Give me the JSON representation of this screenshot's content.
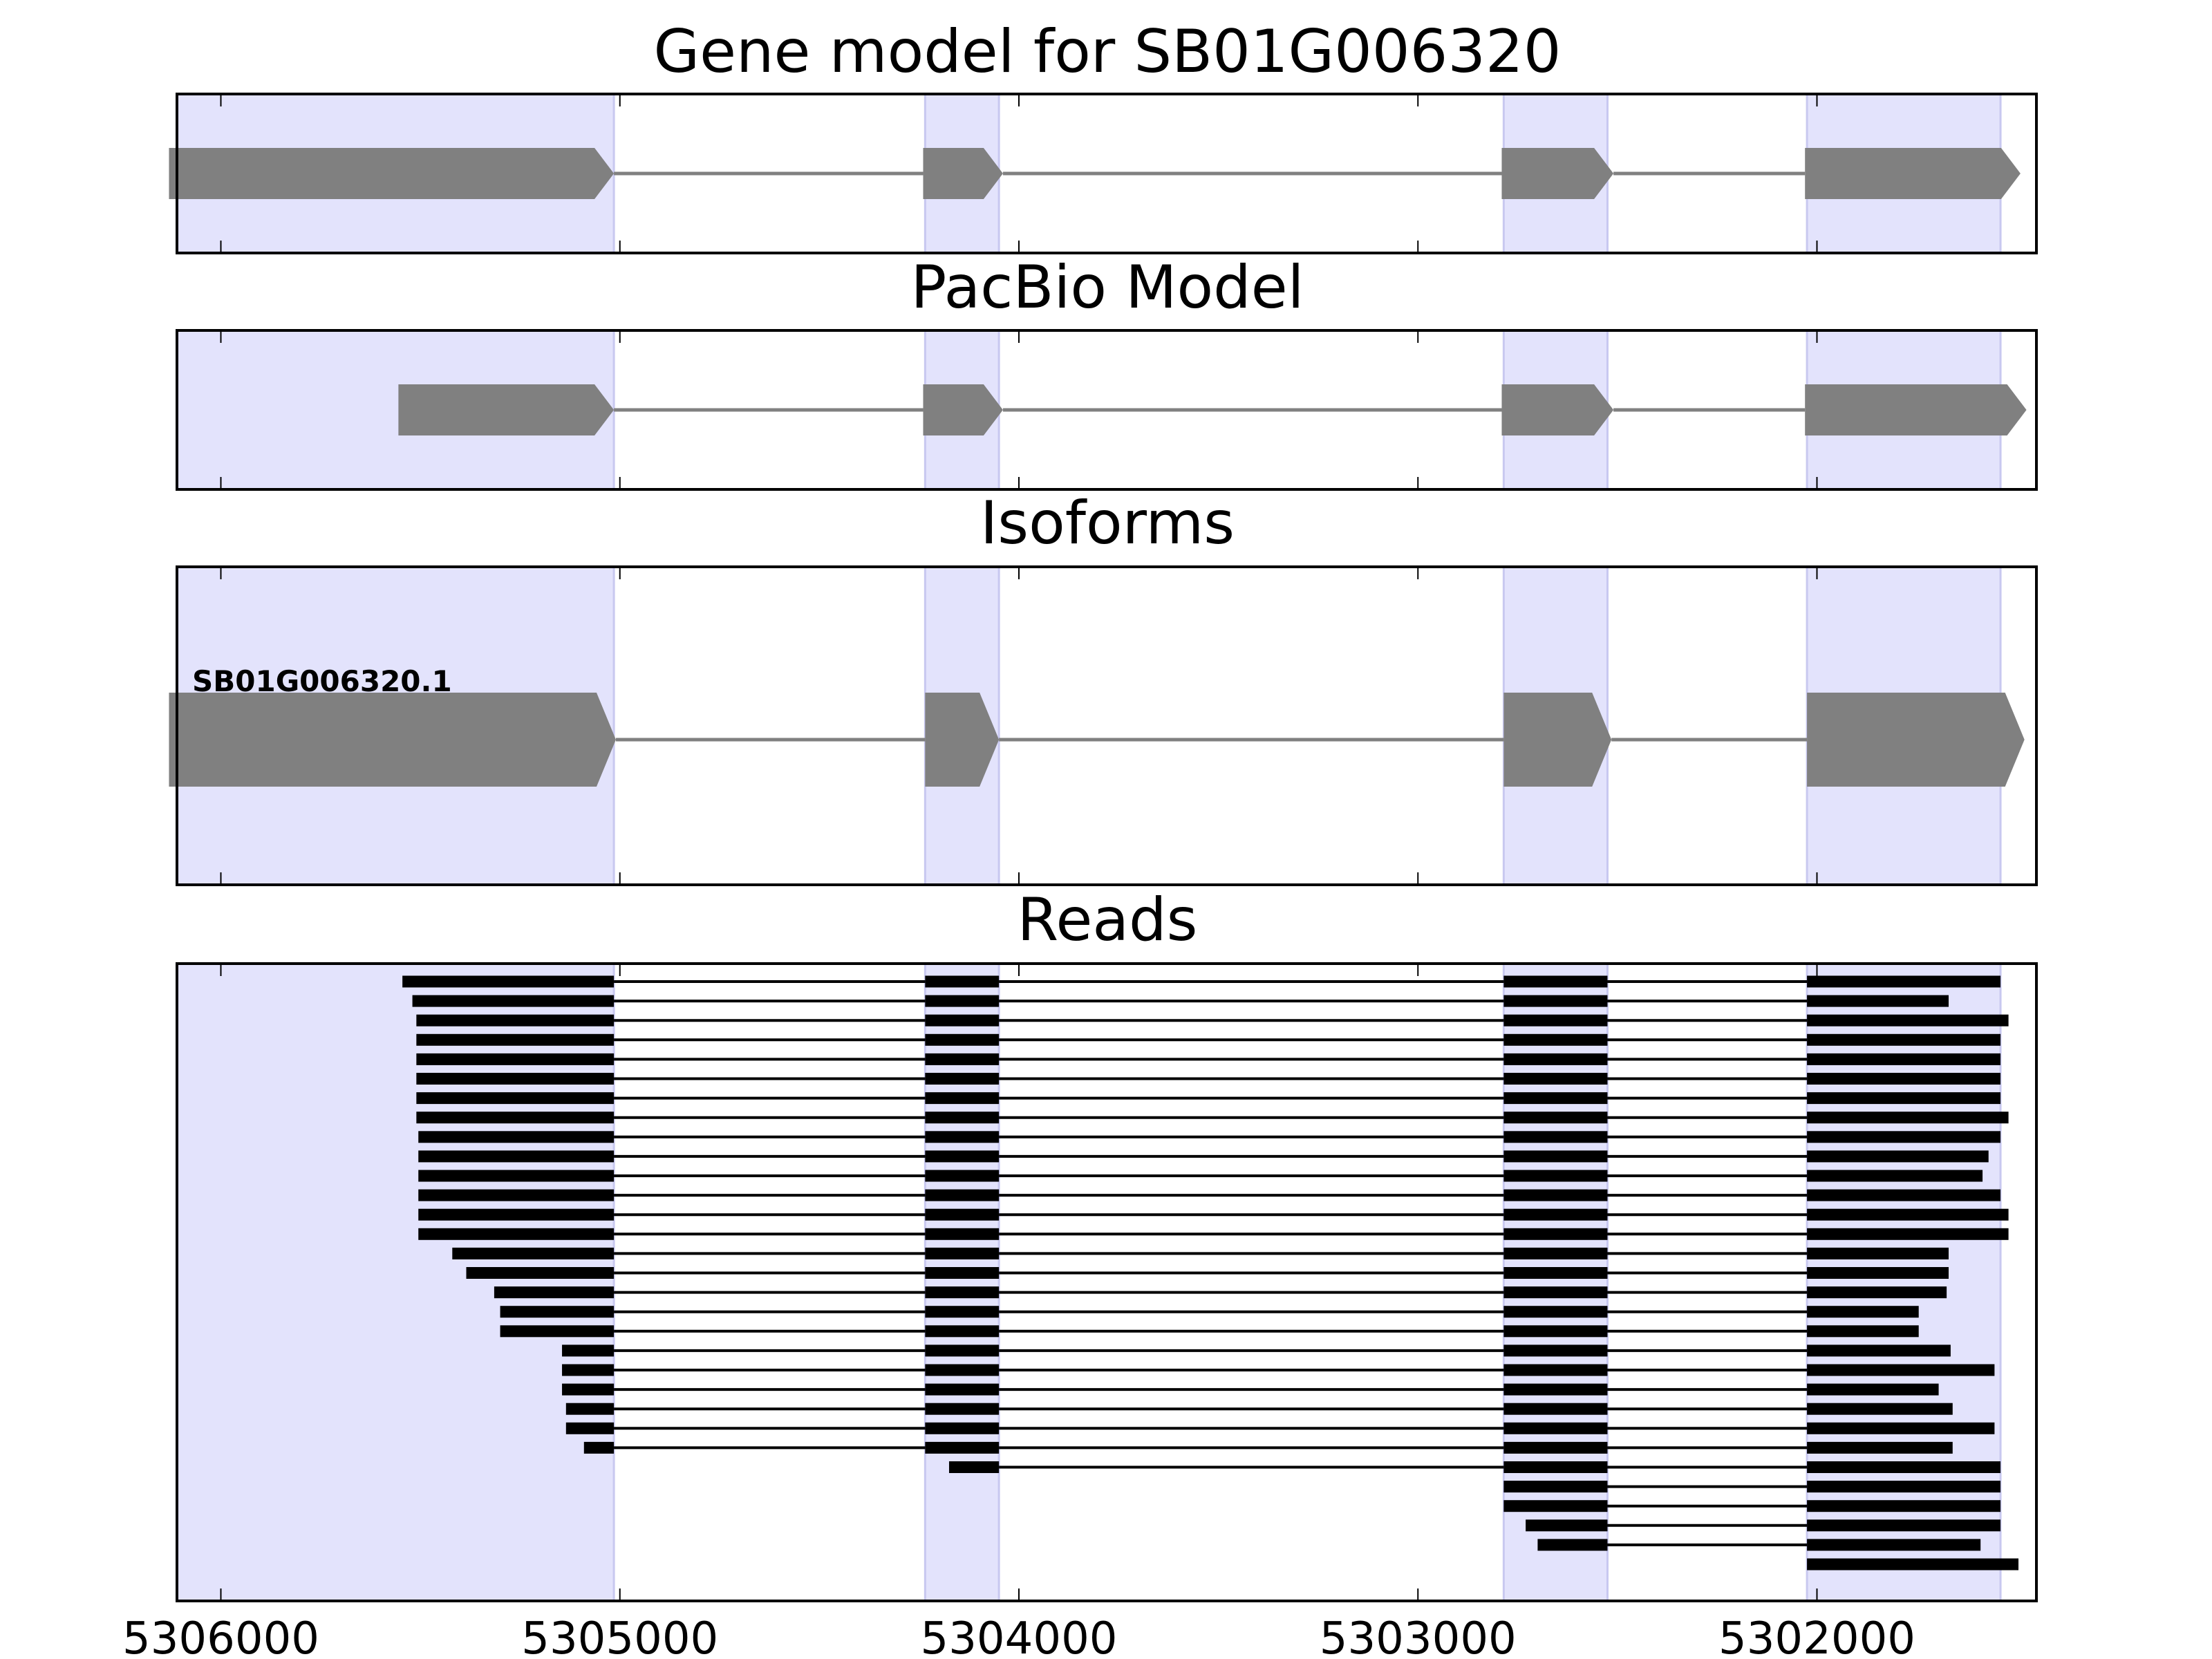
{
  "chart_data": {
    "type": "gene-model",
    "xlim": [
      5306110,
      5301450
    ],
    "x_ticks": [
      5306000,
      5305000,
      5304000,
      5303000,
      5302000
    ],
    "x_tick_labels": [
      "5306000",
      "5305000",
      "5304000",
      "5303000",
      "5302000"
    ],
    "exon_highlight_regions": [
      [
        5306110,
        5305015
      ],
      [
        5304235,
        5304050
      ],
      [
        5302785,
        5302525
      ],
      [
        5302025,
        5301540
      ]
    ],
    "colors": {
      "highlight": "#e3e3fc",
      "highlight_edge": "#c8c8f0",
      "feature": "#808080",
      "read": "#000000",
      "frame": "#000000"
    },
    "panels": [
      {
        "title": "Gene model for SB01G006320",
        "tracks": [
          {
            "label": "",
            "exons": [
              [
                5306130,
                5305015
              ],
              [
                5304240,
                5304040
              ],
              [
                5302790,
                5302510
              ],
              [
                5302030,
                5301490
              ]
            ]
          }
        ]
      },
      {
        "title": "PacBio Model",
        "tracks": [
          {
            "label": "",
            "exons": [
              [
                5305555,
                5305015
              ],
              [
                5304240,
                5304040
              ],
              [
                5302790,
                5302510
              ],
              [
                5302030,
                5301475
              ]
            ]
          }
        ]
      },
      {
        "title": "Isoforms",
        "tracks": [
          {
            "label": "SB01G006320.1",
            "exons": [
              [
                5306130,
                5305010
              ],
              [
                5304235,
                5304050
              ],
              [
                5302785,
                5302515
              ],
              [
                5302025,
                5301480
              ]
            ]
          }
        ]
      },
      {
        "title": "Reads",
        "reads": [
          [
            [
              5305545,
              5305015
            ],
            [
              5304235,
              5304050
            ],
            [
              5302785,
              5302525
            ],
            [
              5302025,
              5301540
            ]
          ],
          [
            [
              5305520,
              5305015
            ],
            [
              5304235,
              5304050
            ],
            [
              5302785,
              5302525
            ],
            [
              5302025,
              5301670
            ]
          ],
          [
            [
              5305510,
              5305015
            ],
            [
              5304235,
              5304050
            ],
            [
              5302785,
              5302525
            ],
            [
              5302025,
              5301520
            ]
          ],
          [
            [
              5305510,
              5305015
            ],
            [
              5304235,
              5304050
            ],
            [
              5302785,
              5302525
            ],
            [
              5302025,
              5301540
            ]
          ],
          [
            [
              5305510,
              5305015
            ],
            [
              5304235,
              5304050
            ],
            [
              5302785,
              5302525
            ],
            [
              5302025,
              5301540
            ]
          ],
          [
            [
              5305510,
              5305015
            ],
            [
              5304235,
              5304050
            ],
            [
              5302785,
              5302525
            ],
            [
              5302025,
              5301540
            ]
          ],
          [
            [
              5305510,
              5305015
            ],
            [
              5304235,
              5304050
            ],
            [
              5302785,
              5302525
            ],
            [
              5302025,
              5301540
            ]
          ],
          [
            [
              5305510,
              5305015
            ],
            [
              5304235,
              5304050
            ],
            [
              5302785,
              5302525
            ],
            [
              5302025,
              5301520
            ]
          ],
          [
            [
              5305505,
              5305015
            ],
            [
              5304235,
              5304050
            ],
            [
              5302785,
              5302525
            ],
            [
              5302025,
              5301540
            ]
          ],
          [
            [
              5305505,
              5305015
            ],
            [
              5304235,
              5304050
            ],
            [
              5302785,
              5302525
            ],
            [
              5302025,
              5301570
            ]
          ],
          [
            [
              5305505,
              5305015
            ],
            [
              5304235,
              5304050
            ],
            [
              5302785,
              5302525
            ],
            [
              5302025,
              5301585
            ]
          ],
          [
            [
              5305505,
              5305015
            ],
            [
              5304235,
              5304050
            ],
            [
              5302785,
              5302525
            ],
            [
              5302025,
              5301540
            ]
          ],
          [
            [
              5305505,
              5305015
            ],
            [
              5304235,
              5304050
            ],
            [
              5302785,
              5302525
            ],
            [
              5302025,
              5301520
            ]
          ],
          [
            [
              5305505,
              5305015
            ],
            [
              5304235,
              5304050
            ],
            [
              5302785,
              5302525
            ],
            [
              5302025,
              5301520
            ]
          ],
          [
            [
              5305420,
              5305015
            ],
            [
              5304235,
              5304050
            ],
            [
              5302785,
              5302525
            ],
            [
              5302025,
              5301670
            ]
          ],
          [
            [
              5305385,
              5305015
            ],
            [
              5304235,
              5304050
            ],
            [
              5302785,
              5302525
            ],
            [
              5302025,
              5301670
            ]
          ],
          [
            [
              5305315,
              5305015
            ],
            [
              5304235,
              5304050
            ],
            [
              5302785,
              5302525
            ],
            [
              5302025,
              5301675
            ]
          ],
          [
            [
              5305300,
              5305015
            ],
            [
              5304235,
              5304050
            ],
            [
              5302785,
              5302525
            ],
            [
              5302025,
              5301745
            ]
          ],
          [
            [
              5305300,
              5305015
            ],
            [
              5304235,
              5304050
            ],
            [
              5302785,
              5302525
            ],
            [
              5302025,
              5301745
            ]
          ],
          [
            [
              5305145,
              5305015
            ],
            [
              5304235,
              5304050
            ],
            [
              5302785,
              5302525
            ],
            [
              5302025,
              5301665
            ]
          ],
          [
            [
              5305145,
              5305015
            ],
            [
              5304235,
              5304050
            ],
            [
              5302785,
              5302525
            ],
            [
              5302025,
              5301555
            ]
          ],
          [
            [
              5305145,
              5305015
            ],
            [
              5304235,
              5304050
            ],
            [
              5302785,
              5302525
            ],
            [
              5302025,
              5301695
            ]
          ],
          [
            [
              5305135,
              5305015
            ],
            [
              5304235,
              5304050
            ],
            [
              5302785,
              5302525
            ],
            [
              5302025,
              5301660
            ]
          ],
          [
            [
              5305135,
              5305015
            ],
            [
              5304235,
              5304050
            ],
            [
              5302785,
              5302525
            ],
            [
              5302025,
              5301555
            ]
          ],
          [
            [
              5305090,
              5305015
            ],
            [
              5304235,
              5304050
            ],
            [
              5302785,
              5302525
            ],
            [
              5302025,
              5301660
            ]
          ],
          [
            [
              5304175,
              5304050
            ],
            [
              5302785,
              5302525
            ],
            [
              5302025,
              5301540
            ]
          ],
          [
            [
              5302785,
              5302525
            ],
            [
              5302025,
              5301540
            ]
          ],
          [
            [
              5302785,
              5302525
            ],
            [
              5302025,
              5301540
            ]
          ],
          [
            [
              5302730,
              5302525
            ],
            [
              5302025,
              5301540
            ]
          ],
          [
            [
              5302700,
              5302525
            ],
            [
              5302025,
              5301590
            ]
          ],
          [
            [
              5302025,
              5301495
            ]
          ]
        ]
      }
    ]
  }
}
